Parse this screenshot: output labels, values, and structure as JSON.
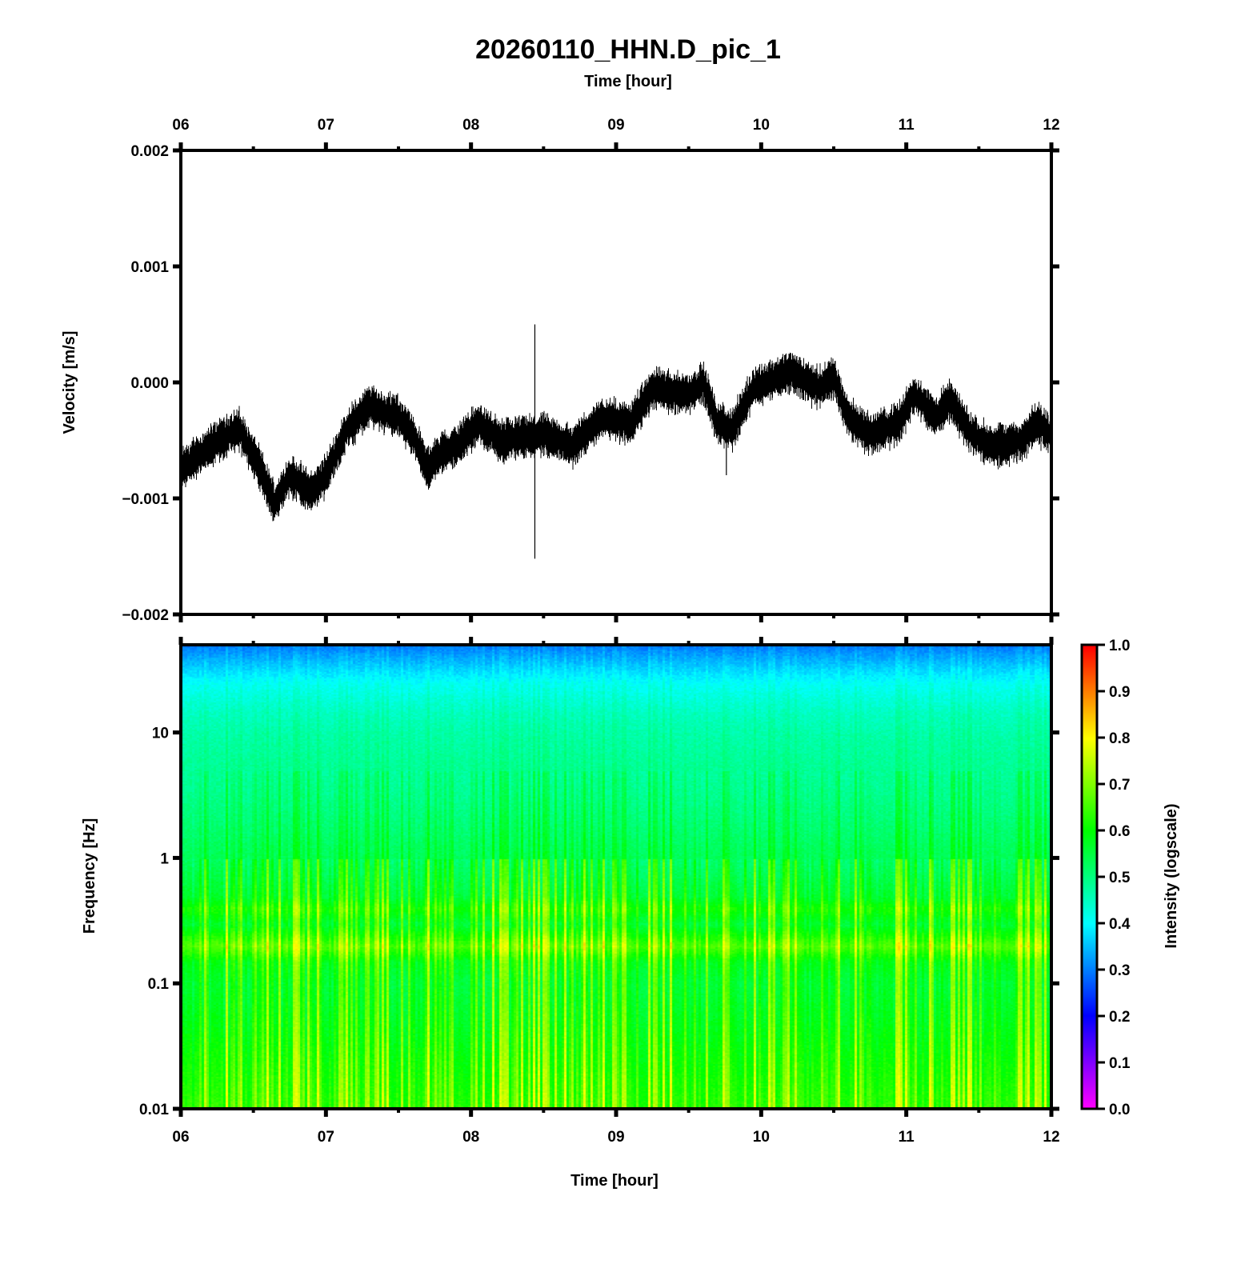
{
  "chart_data": [
    {
      "type": "line",
      "title": "20260110_HHN.D_pic_1",
      "top_xlabel": "Time [hour]",
      "ylabel": "Velocity [m/s]",
      "xlim": [
        6,
        12
      ],
      "ylim": [
        -0.002,
        0.002
      ],
      "x_ticks": [
        "06",
        "07",
        "08",
        "09",
        "10",
        "11",
        "12"
      ],
      "y_ticks": [
        "0.002",
        "0.001",
        "0.000",
        "−0.001",
        "−0.002"
      ],
      "y_tick_values": [
        0.002,
        0.001,
        0,
        -0.001,
        -0.002
      ],
      "noise_amplitude": 0.00018,
      "trend": [
        [
          6.0,
          -0.00075
        ],
        [
          6.2,
          -0.00055
        ],
        [
          6.4,
          -0.0004
        ],
        [
          6.55,
          -0.00075
        ],
        [
          6.65,
          -0.00105
        ],
        [
          6.75,
          -0.0008
        ],
        [
          6.9,
          -0.00095
        ],
        [
          7.0,
          -0.0008
        ],
        [
          7.15,
          -0.0004
        ],
        [
          7.3,
          -0.0002
        ],
        [
          7.5,
          -0.0003
        ],
        [
          7.6,
          -0.00045
        ],
        [
          7.7,
          -0.00075
        ],
        [
          7.8,
          -0.0006
        ],
        [
          7.9,
          -0.00055
        ],
        [
          8.05,
          -0.00035
        ],
        [
          8.2,
          -0.0005
        ],
        [
          8.5,
          -0.00045
        ],
        [
          8.7,
          -0.00055
        ],
        [
          8.9,
          -0.0003
        ],
        [
          9.1,
          -0.00035
        ],
        [
          9.25,
          -5e-05
        ],
        [
          9.5,
          -0.0001
        ],
        [
          9.6,
          0.0
        ],
        [
          9.7,
          -0.00035
        ],
        [
          9.8,
          -0.0004
        ],
        [
          9.95,
          -5e-05
        ],
        [
          10.2,
          0.0001
        ],
        [
          10.4,
          -5e-05
        ],
        [
          10.5,
          5e-05
        ],
        [
          10.6,
          -0.0003
        ],
        [
          10.75,
          -0.00045
        ],
        [
          10.95,
          -0.00035
        ],
        [
          11.05,
          -0.0001
        ],
        [
          11.2,
          -0.0003
        ],
        [
          11.3,
          -0.00015
        ],
        [
          11.45,
          -0.00045
        ],
        [
          11.6,
          -0.00055
        ],
        [
          11.8,
          -0.0005
        ],
        [
          11.9,
          -0.00035
        ],
        [
          12.0,
          -0.00045
        ]
      ],
      "spikes": [
        {
          "x": 8.44,
          "ymax": 0.0005,
          "ymin": -0.00152
        },
        {
          "x": 9.76,
          "ymax": -0.0004,
          "ymin": -0.0008
        }
      ]
    },
    {
      "type": "heatmap",
      "xlabel": "Time [hour]",
      "ylabel": "Frequency [Hz]",
      "xlim": [
        6,
        12
      ],
      "ylim": [
        0.01,
        50
      ],
      "yscale": "log",
      "x_ticks": [
        "06",
        "07",
        "08",
        "09",
        "10",
        "11",
        "12"
      ],
      "y_ticks": [
        "10",
        "1",
        "0.1",
        "0.01"
      ],
      "y_tick_values": [
        10,
        1,
        0.1,
        0.01
      ],
      "colorbar_label": "Intensity (logscale)",
      "colorbar_ticks": [
        "1.0",
        "0.9",
        "0.8",
        "0.7",
        "0.6",
        "0.5",
        "0.4",
        "0.3",
        "0.2",
        "0.1",
        "0.0"
      ],
      "colorbar_range": [
        0,
        1
      ],
      "intensity_profile": [
        [
          50,
          0.3
        ],
        [
          35,
          0.36
        ],
        [
          25,
          0.41
        ],
        [
          15,
          0.45
        ],
        [
          10,
          0.47
        ],
        [
          3,
          0.5
        ],
        [
          1,
          0.54
        ],
        [
          0.5,
          0.58
        ],
        [
          0.4,
          0.63
        ],
        [
          0.3,
          0.58
        ],
        [
          0.2,
          0.68
        ],
        [
          0.15,
          0.6
        ],
        [
          0.1,
          0.58
        ],
        [
          0.05,
          0.6
        ],
        [
          0.02,
          0.63
        ],
        [
          0.01,
          0.65
        ]
      ]
    }
  ]
}
